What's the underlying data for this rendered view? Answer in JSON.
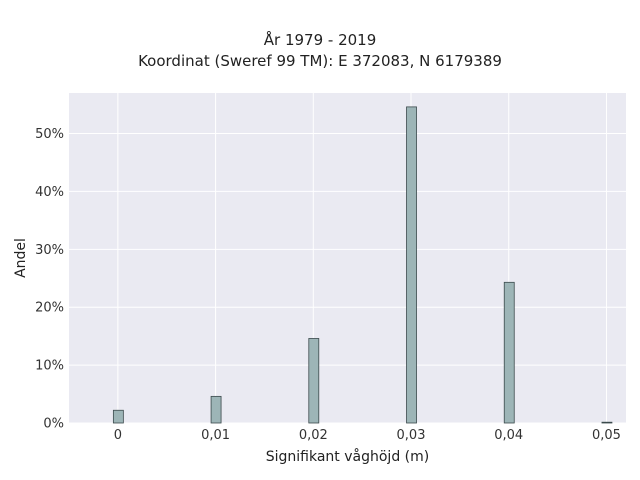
{
  "chart_data": {
    "type": "bar",
    "title_line1": "År 1979 - 2019",
    "title_line2": "Koordinat (Sweref 99 TM): E 372083, N 6179389",
    "xlabel": "Signifikant våghöjd (m)",
    "ylabel": "Andel",
    "x": [
      0,
      0.01,
      0.02,
      0.03,
      0.04,
      0.05
    ],
    "values": [
      2.2,
      4.6,
      14.6,
      54.6,
      24.3,
      0.1
    ],
    "xlim": [
      -0.005,
      0.052
    ],
    "ylim": [
      0,
      57
    ],
    "xticks": [
      0,
      0.01,
      0.02,
      0.03,
      0.04,
      0.05
    ],
    "xtick_labels": [
      "0",
      "0,01",
      "0,02",
      "0,03",
      "0,04",
      "0,05"
    ],
    "yticks": [
      0,
      10,
      20,
      30,
      40,
      50
    ],
    "ytick_labels": [
      "0%",
      "10%",
      "20%",
      "30%",
      "40%",
      "50%"
    ],
    "grid": true,
    "colors": {
      "bar_fill": "#9db5b7",
      "bar_edge": "#3b4a4c",
      "plot_background": "#eaeaf2",
      "grid": "#ffffff"
    }
  }
}
